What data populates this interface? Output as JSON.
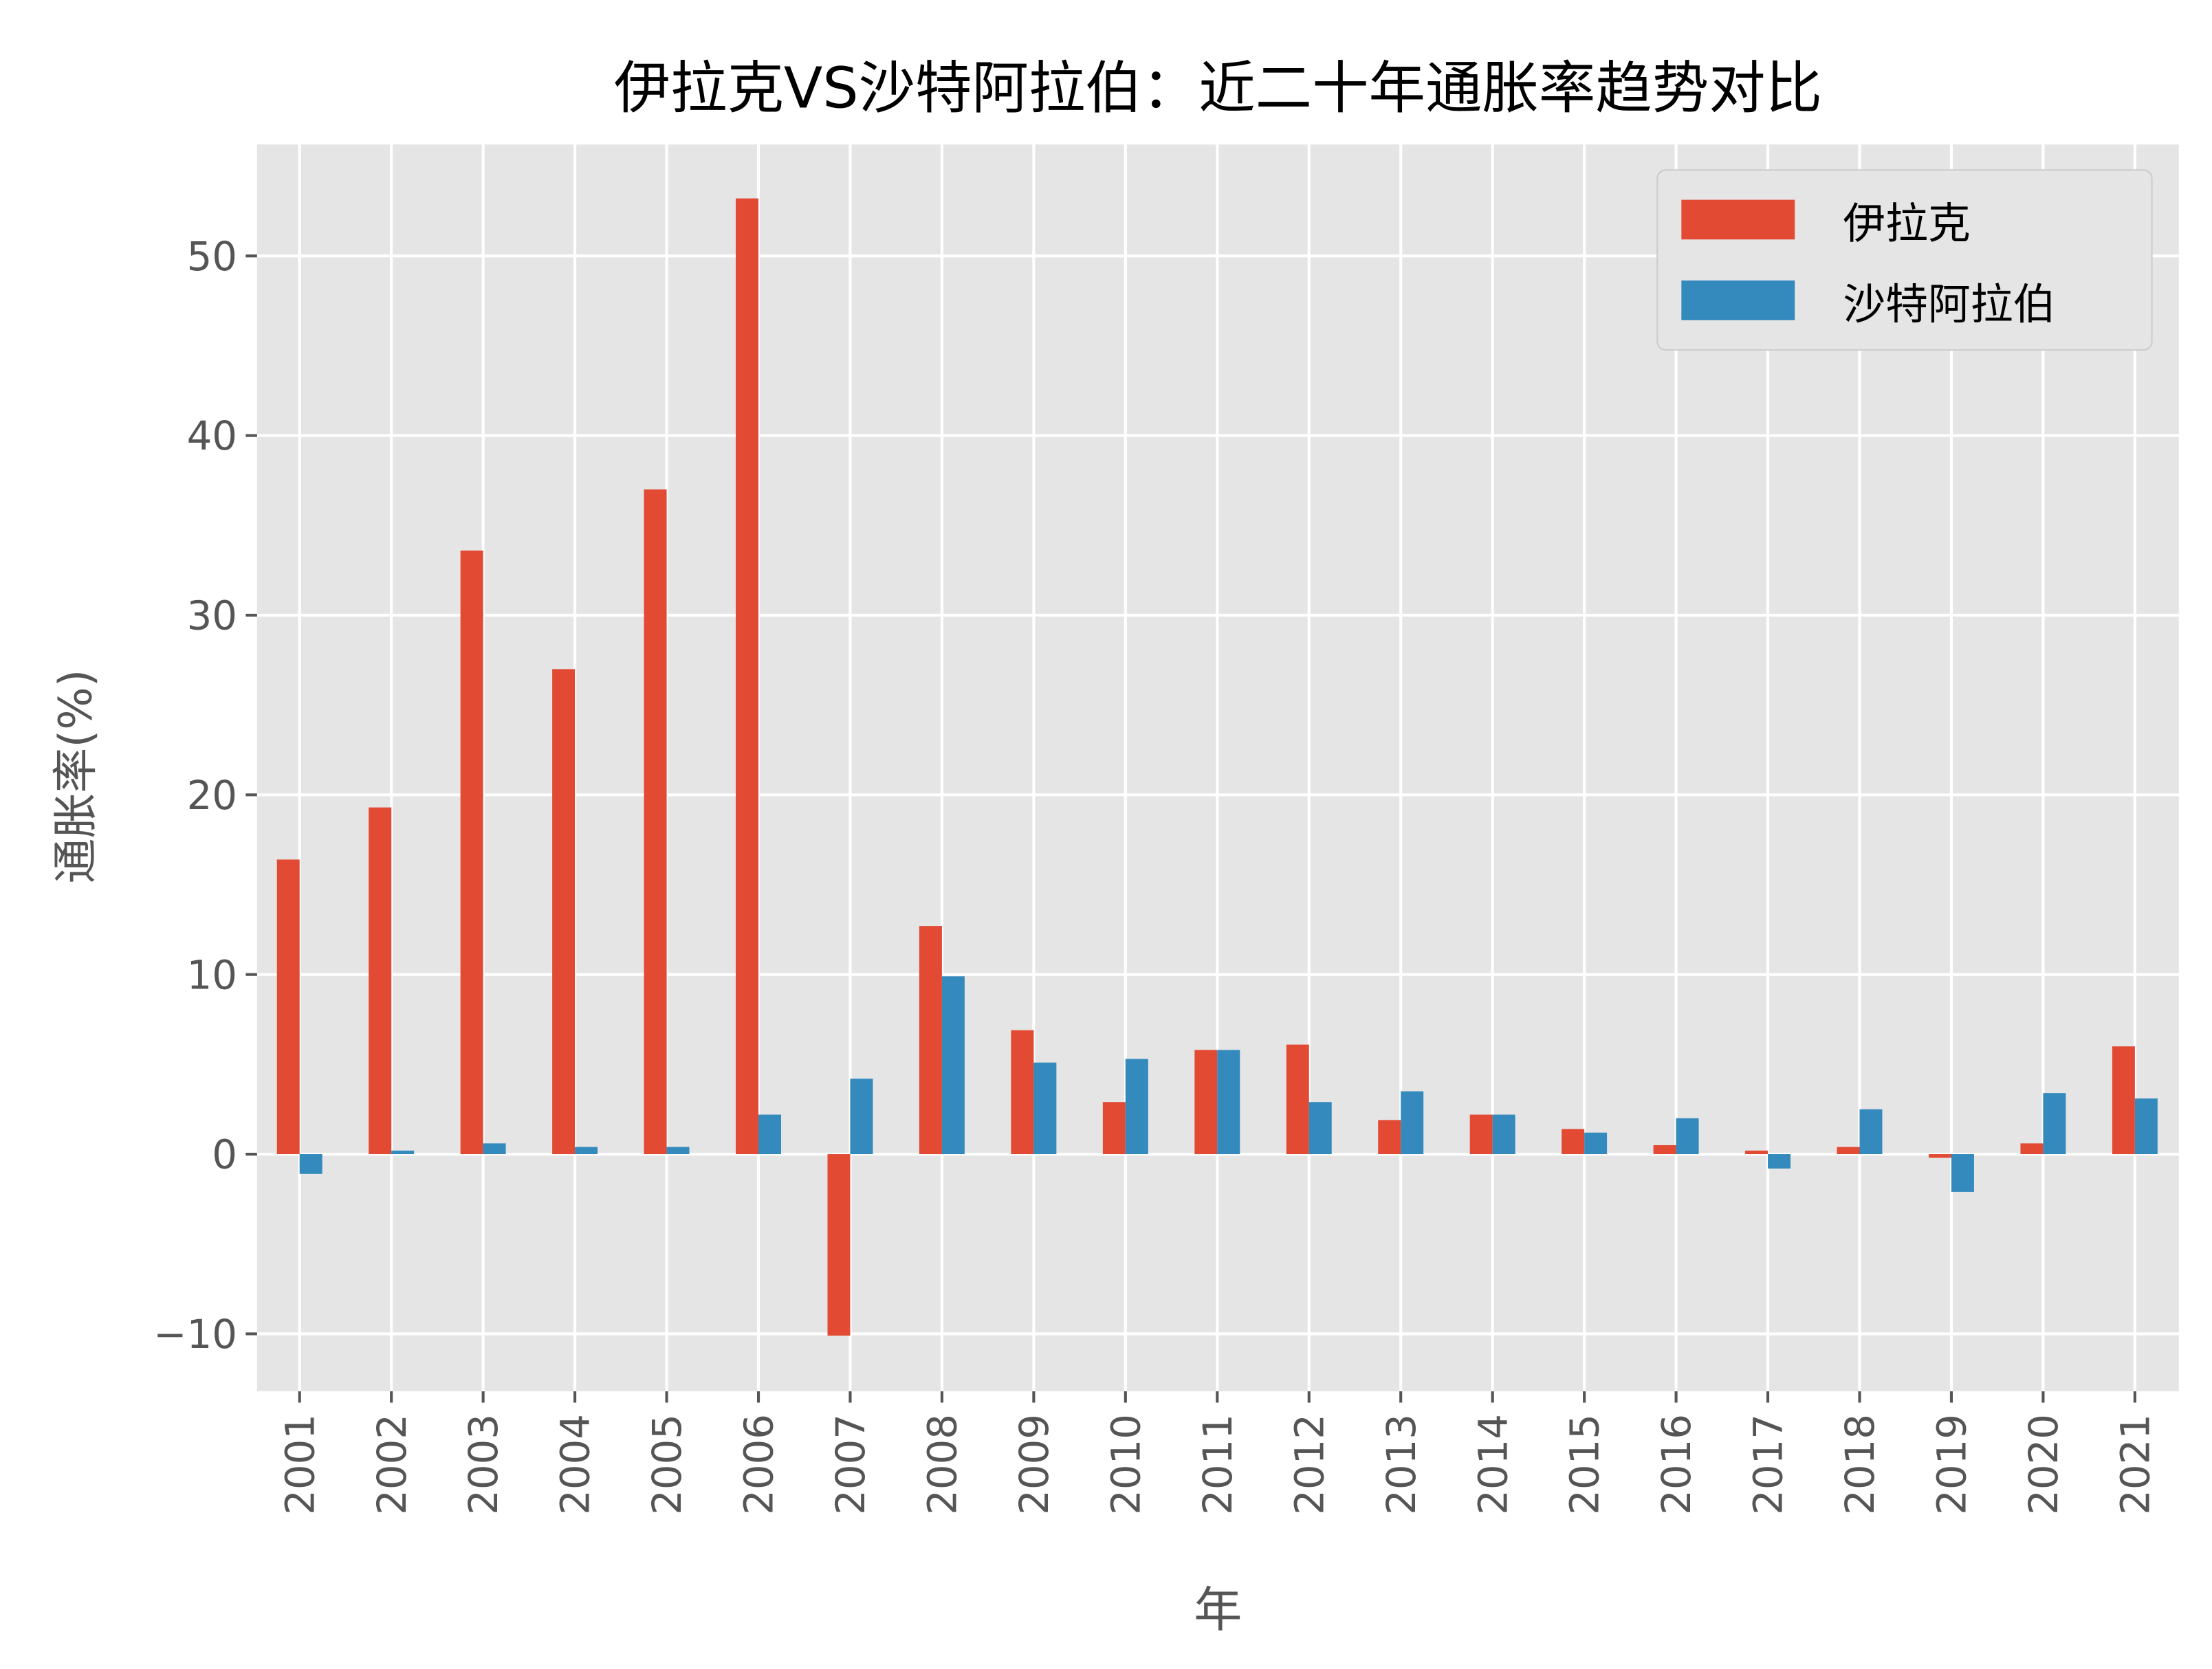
{
  "chart_data": {
    "type": "bar",
    "title": "伊拉克VS沙特阿拉伯：近二十年通胀率趋势对比",
    "xlabel": "年",
    "ylabel": "通胀率(%)",
    "categories": [
      "2001",
      "2002",
      "2003",
      "2004",
      "2005",
      "2006",
      "2007",
      "2008",
      "2009",
      "2010",
      "2011",
      "2012",
      "2013",
      "2014",
      "2015",
      "2016",
      "2017",
      "2018",
      "2019",
      "2020",
      "2021"
    ],
    "series": [
      {
        "name": "伊拉克",
        "color": "#E24A33",
        "values": [
          16.4,
          19.3,
          33.6,
          27.0,
          37.0,
          53.2,
          -10.1,
          12.7,
          6.9,
          2.9,
          5.8,
          6.1,
          1.9,
          2.2,
          1.4,
          0.5,
          0.2,
          0.4,
          -0.2,
          0.6,
          6.0
        ]
      },
      {
        "name": "沙特阿拉伯",
        "color": "#348ABD",
        "values": [
          -1.1,
          0.2,
          0.6,
          0.4,
          0.4,
          2.2,
          4.2,
          9.9,
          5.1,
          5.3,
          5.8,
          2.9,
          3.5,
          2.2,
          1.2,
          2.0,
          -0.8,
          2.5,
          -2.1,
          3.4,
          3.1
        ]
      }
    ],
    "ylim": [
      -13.2,
      56.2
    ],
    "yticks": [
      -10,
      0,
      10,
      20,
      30,
      40,
      50
    ],
    "ytick_labels": [
      "−10",
      "0",
      "10",
      "20",
      "30",
      "40",
      "50"
    ],
    "grid": true,
    "legend": "top-right",
    "background": "#E5E5E5"
  }
}
